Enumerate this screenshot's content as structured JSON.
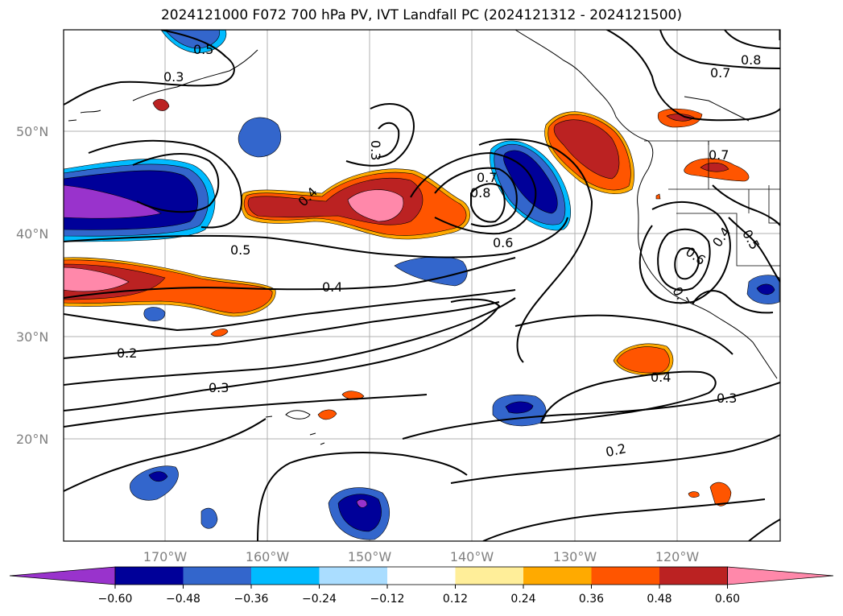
{
  "title": "2024121000 F072 700 hPa PV, IVT Landfall PC (2024121312 - 2024121500)",
  "latitude_labels": [
    "50°N",
    "40°N",
    "30°N",
    "20°N"
  ],
  "longitude_labels": [
    "170°W",
    "160°W",
    "150°W",
    "140°W",
    "130°W",
    "120°W"
  ],
  "contour_labels": [
    "0.5",
    "0.3",
    "0.3",
    "0.4",
    "0.8",
    "0.7",
    "0.7",
    "0.8",
    "0.7",
    "0.6",
    "0.5",
    "0.4",
    "0.2",
    "0.3",
    "0.4",
    "0.3",
    "0.2",
    "0.6",
    "0.4",
    "0.5",
    "0.7"
  ],
  "colorbar": {
    "ticks": [
      "−0.60",
      "−0.48",
      "−0.36",
      "−0.24",
      "−0.12",
      "0.12",
      "0.24",
      "0.36",
      "0.48",
      "0.60"
    ],
    "colors": [
      "#9933cc",
      "#000099",
      "#3366cc",
      "#00bbff",
      "#aaddff",
      "#ffffff",
      "#ffee99",
      "#ffaa00",
      "#ff5500",
      "#bb2222",
      "#ff88aa"
    ]
  },
  "colors": {
    "neg_strong": "#9933cc",
    "neg_dark": "#000099",
    "neg_mid": "#3366cc",
    "neg_light": "#00bbff",
    "pos_mid": "#ff5500",
    "pos_dark": "#bb2222",
    "pos_strong": "#ff88aa"
  }
}
